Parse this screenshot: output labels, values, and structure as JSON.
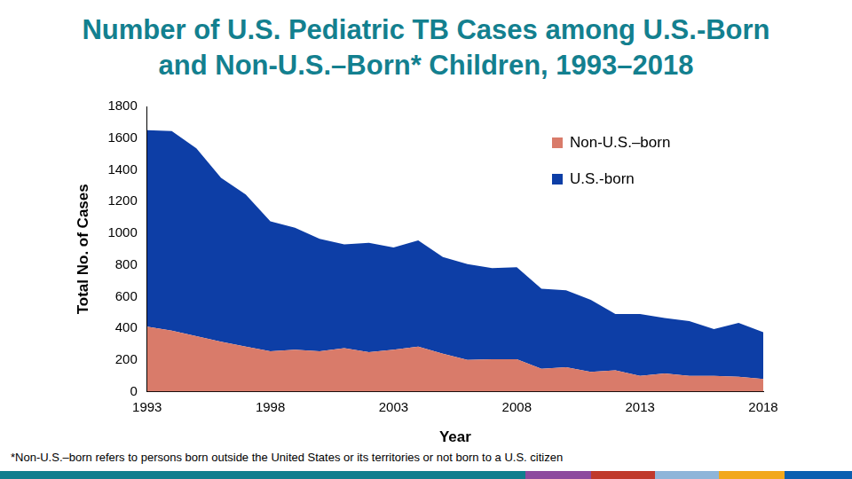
{
  "chart_data": {
    "type": "area",
    "title": [
      "Number of U.S. Pediatric TB Cases among U.S.-Born",
      "and Non-U.S.–Born* Children, 1993–2018"
    ],
    "x_label": "Year",
    "y_label": "Total No. of Cases",
    "footnote": "*Non-U.S.–born refers to persons born outside the United States or its territories or not born to a U.S. citizen",
    "x": [
      1993,
      1994,
      1995,
      1996,
      1997,
      1998,
      1999,
      2000,
      2001,
      2002,
      2003,
      2004,
      2005,
      2006,
      2007,
      2008,
      2009,
      2010,
      2011,
      2012,
      2013,
      2014,
      2015,
      2016,
      2017,
      2018
    ],
    "series": [
      {
        "name": "Non-U.S.–born",
        "color": "#d97b6a",
        "values": [
          410,
          385,
          350,
          315,
          285,
          255,
          265,
          255,
          275,
          250,
          265,
          285,
          240,
          200,
          205,
          205,
          145,
          155,
          125,
          135,
          100,
          115,
          100,
          100,
          95,
          80
        ]
      },
      {
        "name": "U.S.-born",
        "color": "#0d3ea6",
        "values": [
          1240,
          1260,
          1185,
          1035,
          960,
          820,
          770,
          710,
          655,
          690,
          645,
          670,
          610,
          605,
          575,
          580,
          505,
          485,
          455,
          355,
          390,
          350,
          345,
          295,
          340,
          295
        ]
      }
    ],
    "xlim": [
      1993,
      2018
    ],
    "xticks": [
      1993,
      1998,
      2003,
      2008,
      2013,
      2018
    ],
    "ylim": [
      0,
      1800
    ],
    "yticks": [
      0,
      200,
      400,
      600,
      800,
      1000,
      1200,
      1400,
      1600,
      1800
    ],
    "stacked": true,
    "grid": false,
    "legend": "upper right"
  }
}
